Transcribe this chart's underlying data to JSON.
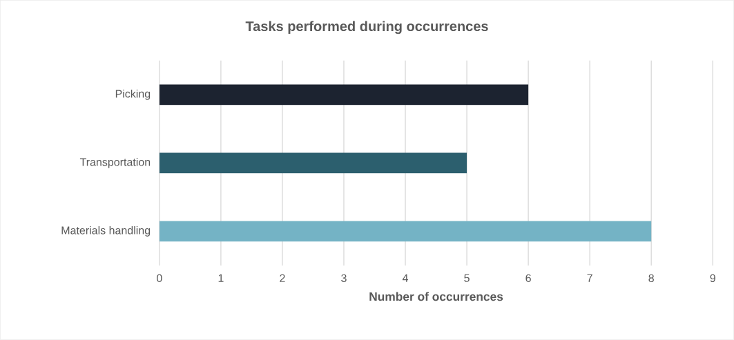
{
  "chart_data": {
    "type": "bar",
    "orientation": "horizontal",
    "title": "Tasks performed during occurrences",
    "xlabel": "Number of occurrences",
    "categories": [
      "Picking",
      "Transportation",
      "Materials handling"
    ],
    "values": [
      6,
      5,
      8
    ],
    "colors": [
      "#1c2330",
      "#2c5f6e",
      "#74b3c5"
    ],
    "xlim": [
      0,
      9
    ],
    "xticks": [
      0,
      1,
      2,
      3,
      4,
      5,
      6,
      7,
      8,
      9
    ],
    "grid": "x"
  }
}
